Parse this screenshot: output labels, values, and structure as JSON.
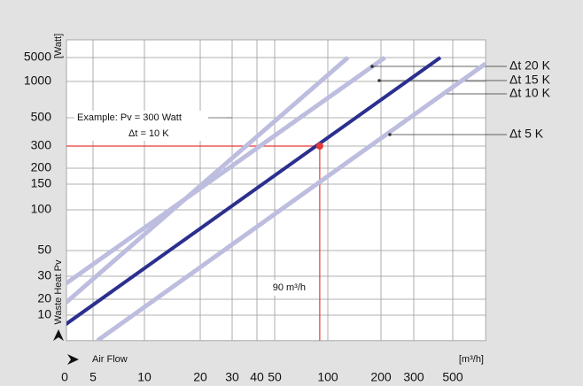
{
  "chart_data": {
    "type": "line",
    "y_label": "Waste Heat Pv",
    "y_unit": "[Watt]",
    "x_label": "Air Flow",
    "x_unit": "[m³/h]",
    "xlim": [
      0,
      770
    ],
    "ylim": [
      3.3,
      16500
    ],
    "xticks": [
      0,
      5,
      10,
      20,
      30,
      40,
      50,
      100,
      200,
      300,
      500
    ],
    "yticks": [
      10,
      20,
      30,
      50,
      100,
      150,
      200,
      300,
      500,
      1000,
      5000
    ],
    "log_scale": true,
    "grid": true,
    "series": [
      {
        "name": "Δt 20 K",
        "color": "#bdbddf",
        "x": [
          0,
          210
        ],
        "values": [
          26,
          5000
        ]
      },
      {
        "name": "Δt 15 K",
        "color": "#bdbddf",
        "x": [
          0,
          130
        ],
        "values": [
          16.5,
          5000
        ]
      },
      {
        "name": "Δt 10 K",
        "color": "#2b2f8e",
        "x": [
          0,
          425
        ],
        "values": [
          6.5,
          5000
        ]
      },
      {
        "name": "Δt 5 K",
        "color": "#bdbddf",
        "x": [
          5.3,
          768
        ],
        "values": [
          3.3,
          3300
        ]
      }
    ],
    "annotation": {
      "text": "Example: Pv = 300 Watt",
      "subtext": "Δt = 10 K",
      "x": 90,
      "y": 300,
      "label": "90 m³/h",
      "color": "#e53935"
    }
  }
}
